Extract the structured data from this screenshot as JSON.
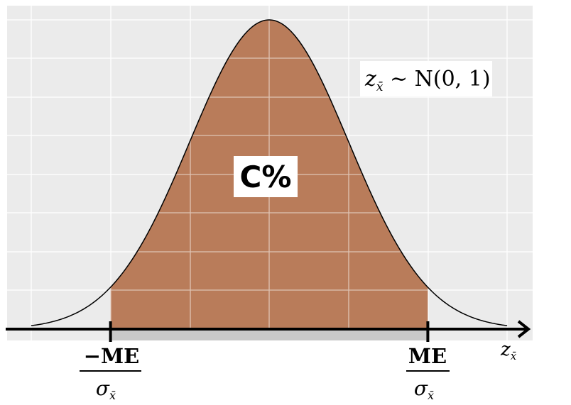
{
  "chart_data": {
    "type": "area",
    "distribution": "standard normal",
    "x_range": [
      -3.0,
      3.0
    ],
    "shaded_interval": [
      -2.0,
      2.0
    ],
    "grid": true,
    "title": "",
    "xlabel": "z_x̄",
    "ylabel": "",
    "annotations": {
      "distribution_label": {
        "lhs": "z",
        "sub": "x̄",
        "rest": " ∼ N(0, 1)"
      },
      "center_label": "C%",
      "lower_bound": {
        "numerator": "−ME",
        "denominator": "σ",
        "denominator_sub": "x̄"
      },
      "upper_bound": {
        "numerator": "ME",
        "denominator": "σ",
        "denominator_sub": "x̄"
      }
    },
    "axis_label": {
      "base": "z",
      "sub": "x̄"
    }
  },
  "colors": {
    "panel_background": "#ebebeb",
    "grid": "#ffffff",
    "fill": "#b97c5a",
    "curve": "#000000",
    "axis": "#000000",
    "bar": "#c8c8c8"
  }
}
